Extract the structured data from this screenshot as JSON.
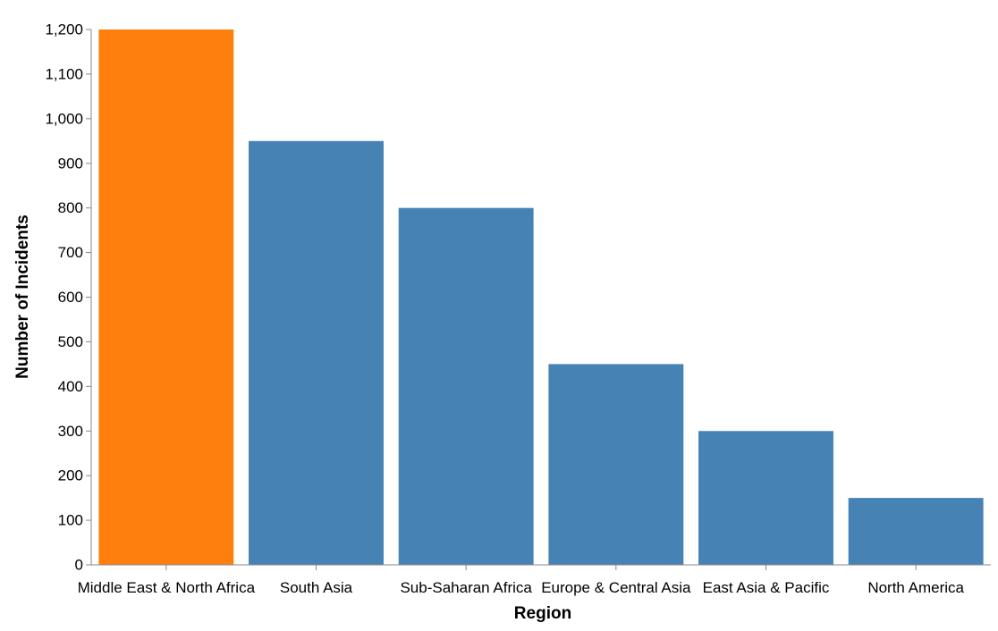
{
  "chart_data": {
    "type": "bar",
    "xlabel": "Region",
    "ylabel": "Number of Incidents",
    "ylim": [
      0,
      1200
    ],
    "yticks": [
      0,
      100,
      200,
      300,
      400,
      500,
      600,
      700,
      800,
      900,
      1000,
      1100,
      1200
    ],
    "grid": false,
    "categories": [
      "Middle East & North Africa",
      "South Asia",
      "Sub-Saharan Africa",
      "Europe & Central Asia",
      "East Asia & Pacific",
      "North America"
    ],
    "values": [
      1200,
      950,
      800,
      450,
      300,
      150
    ],
    "colors": [
      "#ff7f0e",
      "#4682b4",
      "#4682b4",
      "#4682b4",
      "#4682b4",
      "#4682b4"
    ]
  }
}
